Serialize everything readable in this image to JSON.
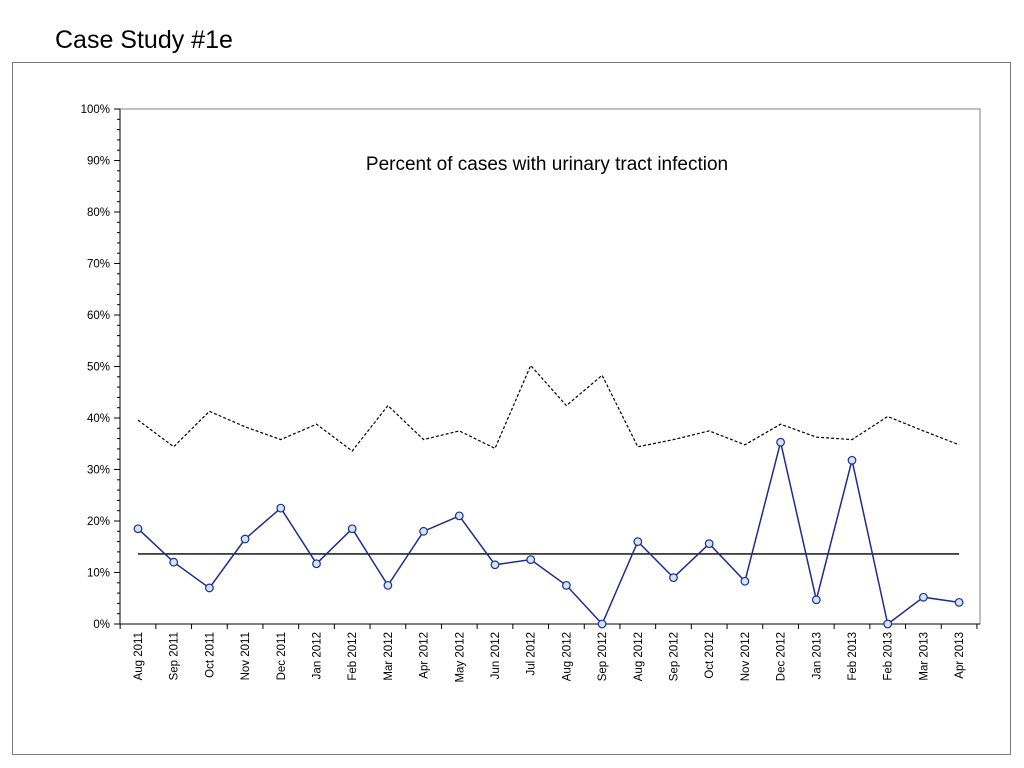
{
  "slide": {
    "title": "Case Study #1e"
  },
  "chart_data": {
    "type": "line",
    "title": "Percent of cases with urinary tract infection",
    "xlabel": "",
    "ylabel": "",
    "ylim": [
      0,
      100
    ],
    "yticks": [
      "0%",
      "10%",
      "20%",
      "30%",
      "40%",
      "50%",
      "60%",
      "70%",
      "80%",
      "90%",
      "100%"
    ],
    "grid": false,
    "categories": [
      "Aug 2011",
      "Sep 2011",
      "Oct 2011",
      "Nov 2011",
      "Dec 2011",
      "Jan 2012",
      "Feb 2012",
      "Mar 2012",
      "Apr 2012",
      "May 2012",
      "Jun 2012",
      "Jul 2012",
      "Aug 2012",
      "Sep 2012",
      "Aug 2012",
      "Sep 2012",
      "Oct 2012",
      "Nov 2012",
      "Dec 2012",
      "Jan 2013",
      "Feb 2013",
      "Feb 2013",
      "Mar 2013",
      "Apr 2013"
    ],
    "series": [
      {
        "role": "data",
        "values": [
          18.5,
          12,
          7,
          16.5,
          22.5,
          11.7,
          18.5,
          7.5,
          18,
          21,
          11.5,
          12.5,
          7.5,
          0,
          16,
          9,
          15.6,
          8.3,
          35.3,
          4.7,
          31.8,
          0,
          5.2,
          4.2
        ],
        "color": "#1f2d8a",
        "marker_fill": "#cfe6f7"
      },
      {
        "role": "center-line",
        "values": [
          13.6,
          13.6,
          13.6,
          13.6,
          13.6,
          13.6,
          13.6,
          13.6,
          13.6,
          13.6,
          13.6,
          13.6,
          13.6,
          13.6,
          13.6,
          13.6,
          13.6,
          13.6,
          13.6,
          13.6,
          13.6,
          13.6,
          13.6,
          13.6
        ],
        "color": "#000000"
      },
      {
        "role": "upper-limit",
        "values": [
          39.6,
          34.4,
          41.3,
          38.3,
          35.8,
          38.8,
          33.6,
          42.4,
          35.8,
          37.5,
          34.1,
          50.2,
          42.4,
          48.3,
          34.4,
          35.8,
          37.5,
          34.8,
          38.8,
          36.3,
          35.8,
          40.3,
          37.5,
          34.8
        ],
        "color": "#000000",
        "dashed": true
      }
    ]
  }
}
